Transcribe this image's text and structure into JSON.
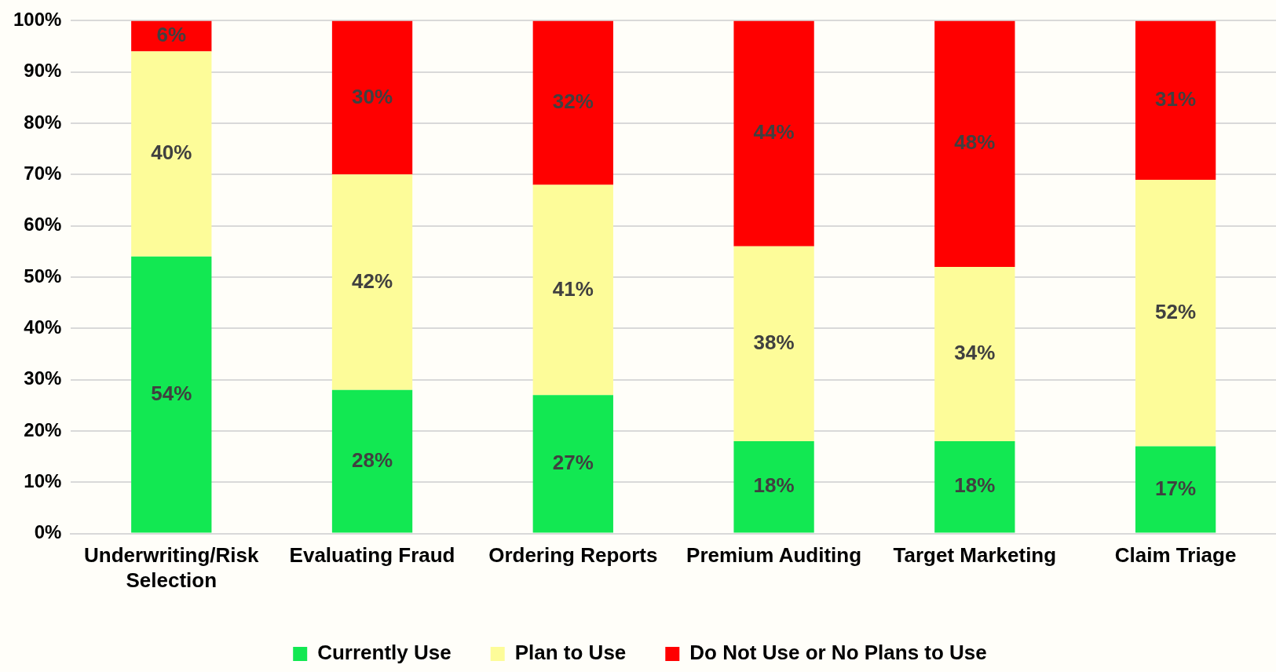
{
  "chart_data": {
    "type": "bar",
    "stacked": true,
    "categories": [
      "Underwriting/Risk Selection",
      "Evaluating Fraud",
      "Ordering Reports",
      "Premium Auditing",
      "Target Marketing",
      "Claim Triage"
    ],
    "series": [
      {
        "name": "Currently Use",
        "color": "#12e852",
        "values": [
          54,
          28,
          27,
          18,
          18,
          17
        ],
        "value_labels": [
          "54%",
          "28%",
          "27%",
          "18%",
          "18%",
          "17%"
        ]
      },
      {
        "name": "Plan to Use",
        "color": "#fdfc99",
        "values": [
          40,
          42,
          41,
          38,
          34,
          52
        ],
        "value_labels": [
          "40%",
          "42%",
          "41%",
          "38%",
          "34%",
          "52%"
        ]
      },
      {
        "name": "Do Not Use or No Plans to Use",
        "color": "#ff0000",
        "values": [
          6,
          30,
          32,
          44,
          48,
          31
        ],
        "value_labels": [
          "6%",
          "30%",
          "32%",
          "44%",
          "48%",
          "31%"
        ]
      }
    ],
    "ylim": [
      0,
      100
    ],
    "yticks": [
      {
        "value": 0,
        "label": "0%"
      },
      {
        "value": 10,
        "label": "10%"
      },
      {
        "value": 20,
        "label": "20%"
      },
      {
        "value": 30,
        "label": "30%"
      },
      {
        "value": 40,
        "label": "40%"
      },
      {
        "value": 50,
        "label": "50%"
      },
      {
        "value": 60,
        "label": "60%"
      },
      {
        "value": 70,
        "label": "70%"
      },
      {
        "value": 80,
        "label": "80%"
      },
      {
        "value": 90,
        "label": "90%"
      },
      {
        "value": 100,
        "label": "100%"
      }
    ],
    "grid": "y",
    "legend": "bottom"
  }
}
